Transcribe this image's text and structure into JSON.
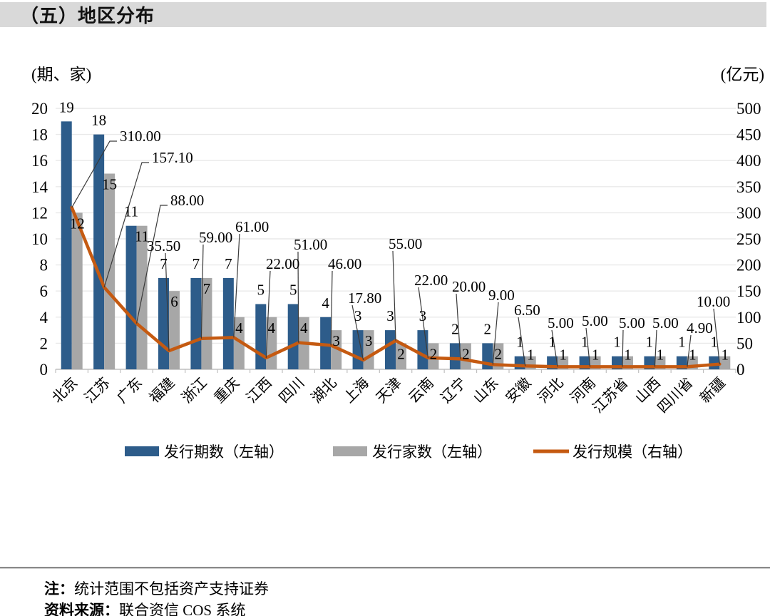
{
  "page": {
    "title": "（五）地区分布"
  },
  "axis_units": {
    "left": "(期、家)",
    "right": "(亿元)"
  },
  "legend": [
    {
      "label": "发行期数（左轴）",
      "type": "bar",
      "color": "#2d5c8a"
    },
    {
      "label": "发行家数（左轴）",
      "type": "bar",
      "color": "#a7a7a7"
    },
    {
      "label": "发行规模（右轴）",
      "type": "line",
      "color": "#c55a11"
    }
  ],
  "notes": {
    "note_label": "注：",
    "note_text": "统计范围不包括资产支持证券",
    "source_label": "资料来源：",
    "source_text": "联合资信 COS 系统"
  },
  "colors": {
    "bar_blue": "#2d5c8a",
    "bar_gray": "#a7a7a7",
    "line_orange": "#c55a11",
    "gridline": "#e9e9e9",
    "axis_line": "#bfbfbf",
    "leader_line": "#3a3a3a",
    "banner_bg": "#d9d9d9"
  },
  "chart_data": {
    "type": "bar+line combo",
    "title": "（五）地区分布",
    "categories": [
      "北京",
      "江苏",
      "广东",
      "福建",
      "浙江",
      "重庆",
      "江西",
      "四川",
      "湖北",
      "上海",
      "天津",
      "云南",
      "辽宁",
      "山东",
      "安徽",
      "河北",
      "河南",
      "江苏省",
      "山西",
      "四川省",
      "新疆"
    ],
    "series": [
      {
        "name": "发行期数（左轴）",
        "type": "bar",
        "axis": "left",
        "color": "#2d5c8a",
        "values": [
          19,
          18,
          11,
          7,
          7,
          7,
          5,
          5,
          4,
          3,
          3,
          3,
          2,
          2,
          1,
          1,
          1,
          1,
          1,
          1,
          1
        ]
      },
      {
        "name": "发行家数（左轴）",
        "type": "bar",
        "axis": "left",
        "color": "#a7a7a7",
        "values": [
          12,
          15,
          11,
          6,
          7,
          4,
          4,
          4,
          3,
          3,
          2,
          2,
          2,
          2,
          1,
          1,
          1,
          1,
          1,
          1,
          1
        ]
      },
      {
        "name": "发行规模（右轴）",
        "type": "line",
        "axis": "right",
        "color": "#c55a11",
        "values": [
          310.0,
          157.1,
          88.0,
          35.5,
          59.0,
          61.0,
          22.0,
          51.0,
          46.0,
          17.8,
          55.0,
          22.0,
          20.0,
          9.0,
          6.5,
          5.0,
          5.0,
          5.0,
          5.0,
          4.9,
          10.0
        ],
        "labels": [
          "310.00",
          "157.10",
          "88.00",
          "35.50",
          "59.00",
          "61.00",
          "22.00",
          "51.00",
          "46.00",
          "17.80",
          "55.00",
          "22.00",
          "20.00",
          "9.00",
          "6.50",
          "5.00",
          "5.00",
          "5.00",
          "5.00",
          "4.90",
          "10.00"
        ]
      }
    ],
    "left_axis": {
      "label": "(期、家)",
      "min": 0,
      "max": 20,
      "step": 2,
      "ticks": [
        "0",
        "2",
        "4",
        "6",
        "8",
        "10",
        "12",
        "14",
        "16",
        "18",
        "20"
      ]
    },
    "right_axis": {
      "label": "(亿元)",
      "min": 0,
      "max": 500,
      "step": 50,
      "ticks": [
        "0",
        "50",
        "100",
        "150",
        "200",
        "250",
        "300",
        "350",
        "400",
        "450",
        "500"
      ]
    },
    "grid": true,
    "legend_position": "bottom",
    "x_labels_rotation": -45
  }
}
